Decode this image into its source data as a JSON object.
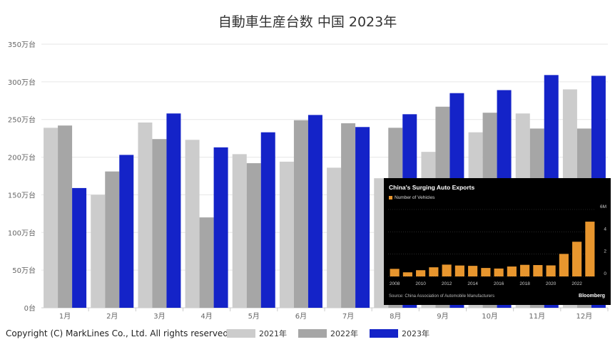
{
  "title": "自動車生産台数 中国 2023年",
  "copyright": "Copyright (C) MarkLines Co., Ltd. All rights reserved.",
  "colors": {
    "2021": "#cccccc",
    "2022": "#a6a6a6",
    "2023": "#1423c8",
    "grid": "#e6e6e6",
    "axis_text": "#666666"
  },
  "chart_data": [
    {
      "type": "bar",
      "title": "自動車生産台数 中国 2023年",
      "categories": [
        "1月",
        "2月",
        "3月",
        "4月",
        "5月",
        "6月",
        "7月",
        "8月",
        "9月",
        "10月",
        "11月",
        "12月"
      ],
      "y_ticks": [
        "0台",
        "50万台",
        "100万台",
        "150万台",
        "200万台",
        "250万台",
        "300万台",
        "350万台"
      ],
      "ylim": [
        0,
        350
      ],
      "unit": "万台",
      "grid": true,
      "legend_placement": "bottom",
      "series": [
        {
          "name": "2021年",
          "values": [
            239,
            150,
            246,
            223,
            204,
            194,
            186,
            172,
            207,
            233,
            258,
            290
          ]
        },
        {
          "name": "2022年",
          "values": [
            242,
            181,
            224,
            120,
            192,
            249,
            245,
            239,
            267,
            259,
            238,
            238
          ]
        },
        {
          "name": "2023年",
          "values": [
            159,
            203,
            258,
            213,
            233,
            256,
            240,
            257,
            285,
            289,
            309,
            308
          ]
        }
      ]
    },
    {
      "type": "bar",
      "title": "China's Surging Auto Exports",
      "legend": [
        "Number of Vehicles"
      ],
      "x": [
        2008,
        2009,
        2010,
        2011,
        2012,
        2013,
        2014,
        2015,
        2016,
        2017,
        2018,
        2019,
        2020,
        2021,
        2022,
        2023
      ],
      "x_ticks": [
        "2008",
        "2010",
        "2012",
        "2014",
        "2016",
        "2018",
        "2020",
        "2022"
      ],
      "y_ticks": [
        "0",
        "2",
        "4",
        "6M"
      ],
      "ylim": [
        0,
        6
      ],
      "bar_color": "#e8962e",
      "values": [
        0.68,
        0.37,
        0.56,
        0.82,
        1.06,
        0.98,
        0.95,
        0.76,
        0.71,
        0.89,
        1.04,
        1.02,
        0.99,
        2.02,
        3.11,
        4.91
      ],
      "source": "Source: China Association of Automobile Manufacturers",
      "brand": "Bloomberg"
    }
  ]
}
